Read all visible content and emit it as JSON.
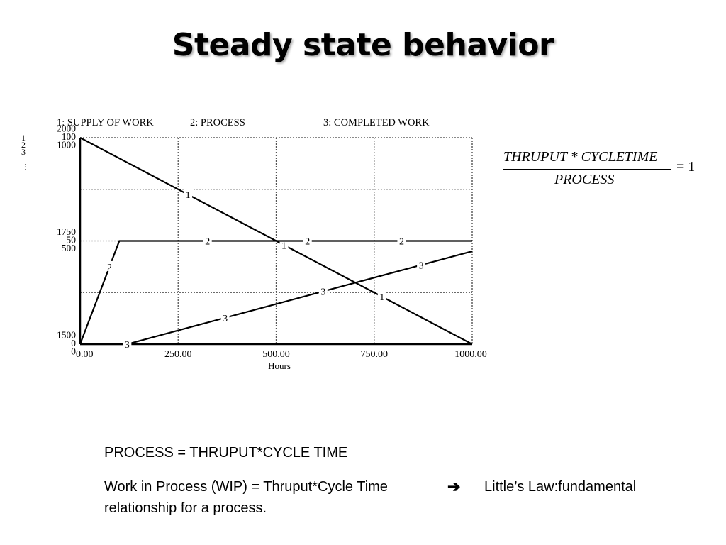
{
  "slide": {
    "title": "Steady state behavior"
  },
  "formula": {
    "numerator": "THRUPUT * CYCLETIME",
    "denominator": "PROCESS",
    "rhs": "= 1"
  },
  "text": {
    "line1": "PROCESS = THRUPUT*CYCLE TIME",
    "line2_left": "Work in Process (WIP) = Thruput*Cycle Time",
    "arrow": "➔",
    "line2_right": "Little’s Law:fundamental",
    "line3": "relationship for  a process."
  },
  "chart_data": {
    "type": "line",
    "xlabel": "Hours",
    "xlim": [
      0,
      1000
    ],
    "x_ticks": [
      "0.00",
      "250.00",
      "500.00",
      "750.00",
      "1000.00"
    ],
    "legend": [
      {
        "id": "1",
        "label": "1: SUPPLY OF WORK"
      },
      {
        "id": "2",
        "label": "2: PROCESS"
      },
      {
        "id": "3",
        "label": "3: COMPLETED WORK"
      }
    ],
    "axis_ids": [
      "1",
      "2",
      "3"
    ],
    "y_scales": {
      "1": {
        "min": 1500,
        "max": 2000,
        "ticks": [
          "1500",
          "1750",
          "2000"
        ]
      },
      "2": {
        "min": 0,
        "max": 100,
        "ticks": [
          "0",
          "50",
          "100"
        ]
      },
      "3": {
        "min": 0,
        "max": 1000,
        "ticks": [
          "0",
          "500",
          "1000"
        ]
      }
    },
    "grid": true,
    "series": [
      {
        "name": "SUPPLY OF WORK",
        "id": "1",
        "x": [
          0,
          1000
        ],
        "y": [
          2000,
          1500
        ],
        "markers_x": [
          275,
          520,
          770
        ]
      },
      {
        "name": "PROCESS",
        "id": "2",
        "x": [
          0,
          100,
          1000
        ],
        "y": [
          0,
          50,
          50
        ],
        "markers_x": [
          75,
          325,
          580,
          820
        ]
      },
      {
        "name": "COMPLETED WORK",
        "id": "3",
        "x": [
          0,
          120,
          1000
        ],
        "y": [
          0,
          0,
          450
        ],
        "markers_x": [
          120,
          370,
          620,
          870
        ]
      }
    ]
  }
}
